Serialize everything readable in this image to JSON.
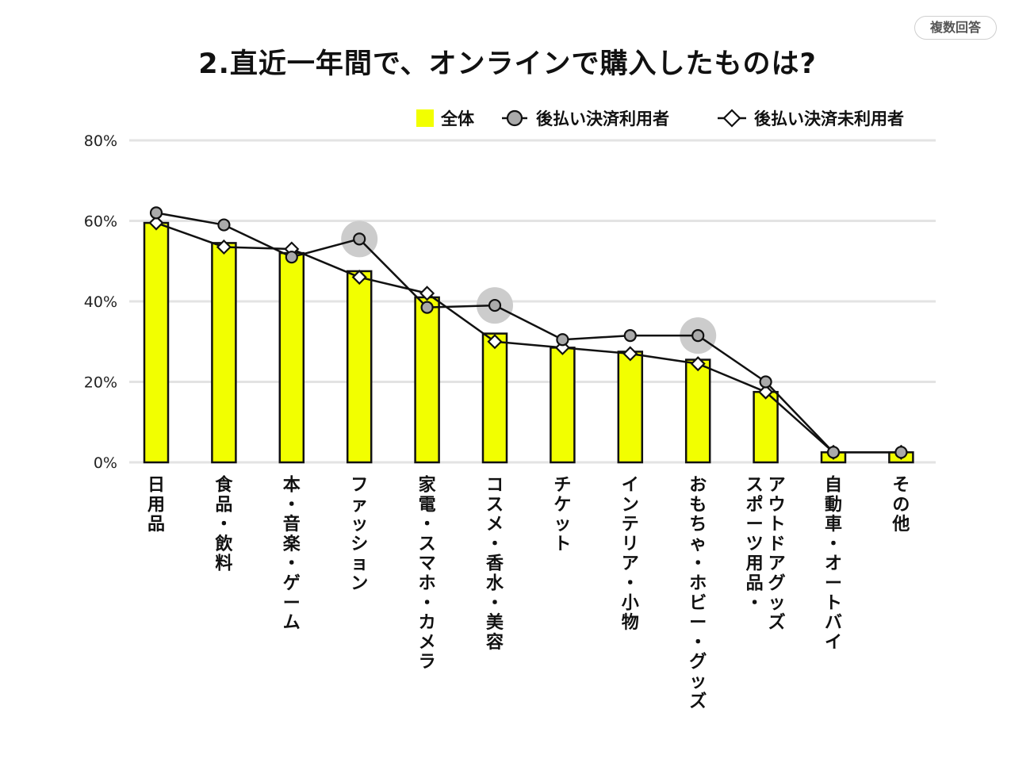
{
  "badge": "複数回答",
  "title": "2.直近一年間で、オンラインで購入したものは?",
  "chart_data": {
    "type": "bar",
    "categories": [
      "日用品",
      "食品・飲料",
      "本・音楽・ゲーム",
      "ファッション",
      "家電・スマホ・カメラ",
      "コスメ・香水・美容",
      "チケット",
      "インテリア・小物",
      "おもちゃ・ホビー・グッズ",
      "スポーツ用品・アウトドアグッズ",
      "自動車・オートバイ",
      "その他"
    ],
    "category_lines": [
      [
        "日用品"
      ],
      [
        "食品・飲料"
      ],
      [
        "本・音楽・ゲーム"
      ],
      [
        "ファッション"
      ],
      [
        "家電・スマホ・カメラ"
      ],
      [
        "コスメ・香水・美容"
      ],
      [
        "チケット"
      ],
      [
        "インテリア・小物"
      ],
      [
        "おもちゃ・ホビー・グッズ"
      ],
      [
        "スポーツ用品・",
        "アウトドアグッズ"
      ],
      [
        "自動車・オートバイ"
      ],
      [
        "その他"
      ]
    ],
    "series": [
      {
        "name": "全体",
        "type": "bar",
        "color": "#f2ff00",
        "values": [
          59.5,
          54.5,
          52,
          47.5,
          41,
          32,
          28.5,
          27.5,
          25.5,
          17.5,
          2.5,
          2.5
        ]
      },
      {
        "name": "後払い決済利用者",
        "type": "line",
        "marker": "circle",
        "color": "#aaaaaa",
        "values": [
          62,
          59,
          51,
          55.5,
          38.5,
          39,
          30.5,
          31.5,
          31.5,
          20,
          2.5,
          2.5
        ]
      },
      {
        "name": "後払い決済未利用者",
        "type": "line",
        "marker": "diamond",
        "color": "#ffffff",
        "values": [
          59.5,
          53.5,
          53,
          46,
          42,
          30,
          28.5,
          27,
          24.5,
          17.5,
          2.5,
          2.5
        ]
      }
    ],
    "highlighted": [
      {
        "series": 1,
        "index": 3
      },
      {
        "series": 1,
        "index": 5
      },
      {
        "series": 1,
        "index": 8
      }
    ],
    "highlight_color": "#cccccc",
    "ylim": [
      0,
      80
    ],
    "yticks": [
      "0%",
      "20%",
      "40%",
      "60%",
      "80%"
    ],
    "ytick_values": [
      0,
      20,
      40,
      60,
      80
    ],
    "grid": true,
    "legend_position": "top-right"
  }
}
